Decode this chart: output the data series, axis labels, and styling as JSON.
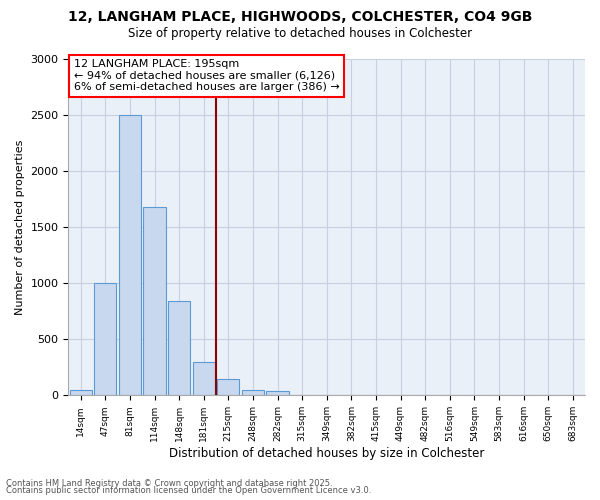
{
  "title": "12, LANGHAM PLACE, HIGHWOODS, COLCHESTER, CO4 9GB",
  "subtitle": "Size of property relative to detached houses in Colchester",
  "xlabel": "Distribution of detached houses by size in Colchester",
  "ylabel": "Number of detached properties",
  "footer1": "Contains HM Land Registry data © Crown copyright and database right 2025.",
  "footer2": "Contains public sector information licensed under the Open Government Licence v3.0.",
  "bin_labels": [
    "14sqm",
    "47sqm",
    "81sqm",
    "114sqm",
    "148sqm",
    "181sqm",
    "215sqm",
    "248sqm",
    "282sqm",
    "315sqm",
    "349sqm",
    "382sqm",
    "415sqm",
    "449sqm",
    "482sqm",
    "516sqm",
    "549sqm",
    "583sqm",
    "616sqm",
    "650sqm",
    "683sqm"
  ],
  "bar_values": [
    50,
    1000,
    2500,
    1680,
    840,
    300,
    150,
    50,
    40,
    5,
    5,
    0,
    0,
    0,
    0,
    0,
    0,
    0,
    0,
    0,
    0
  ],
  "bar_color": "#c8d8ee",
  "bar_edge_color": "#5b9bd5",
  "grid_color": "#c8cfe0",
  "property_line_x": 5.5,
  "annotation_text": "12 LANGHAM PLACE: 195sqm\n← 94% of detached houses are smaller (6,126)\n6% of semi-detached houses are larger (386) →",
  "annotation_box_color": "red",
  "ylim": [
    0,
    3000
  ],
  "yticks": [
    0,
    500,
    1000,
    1500,
    2000,
    2500,
    3000
  ],
  "fig_bg": "#ffffff",
  "axes_bg": "#eaf0f8"
}
